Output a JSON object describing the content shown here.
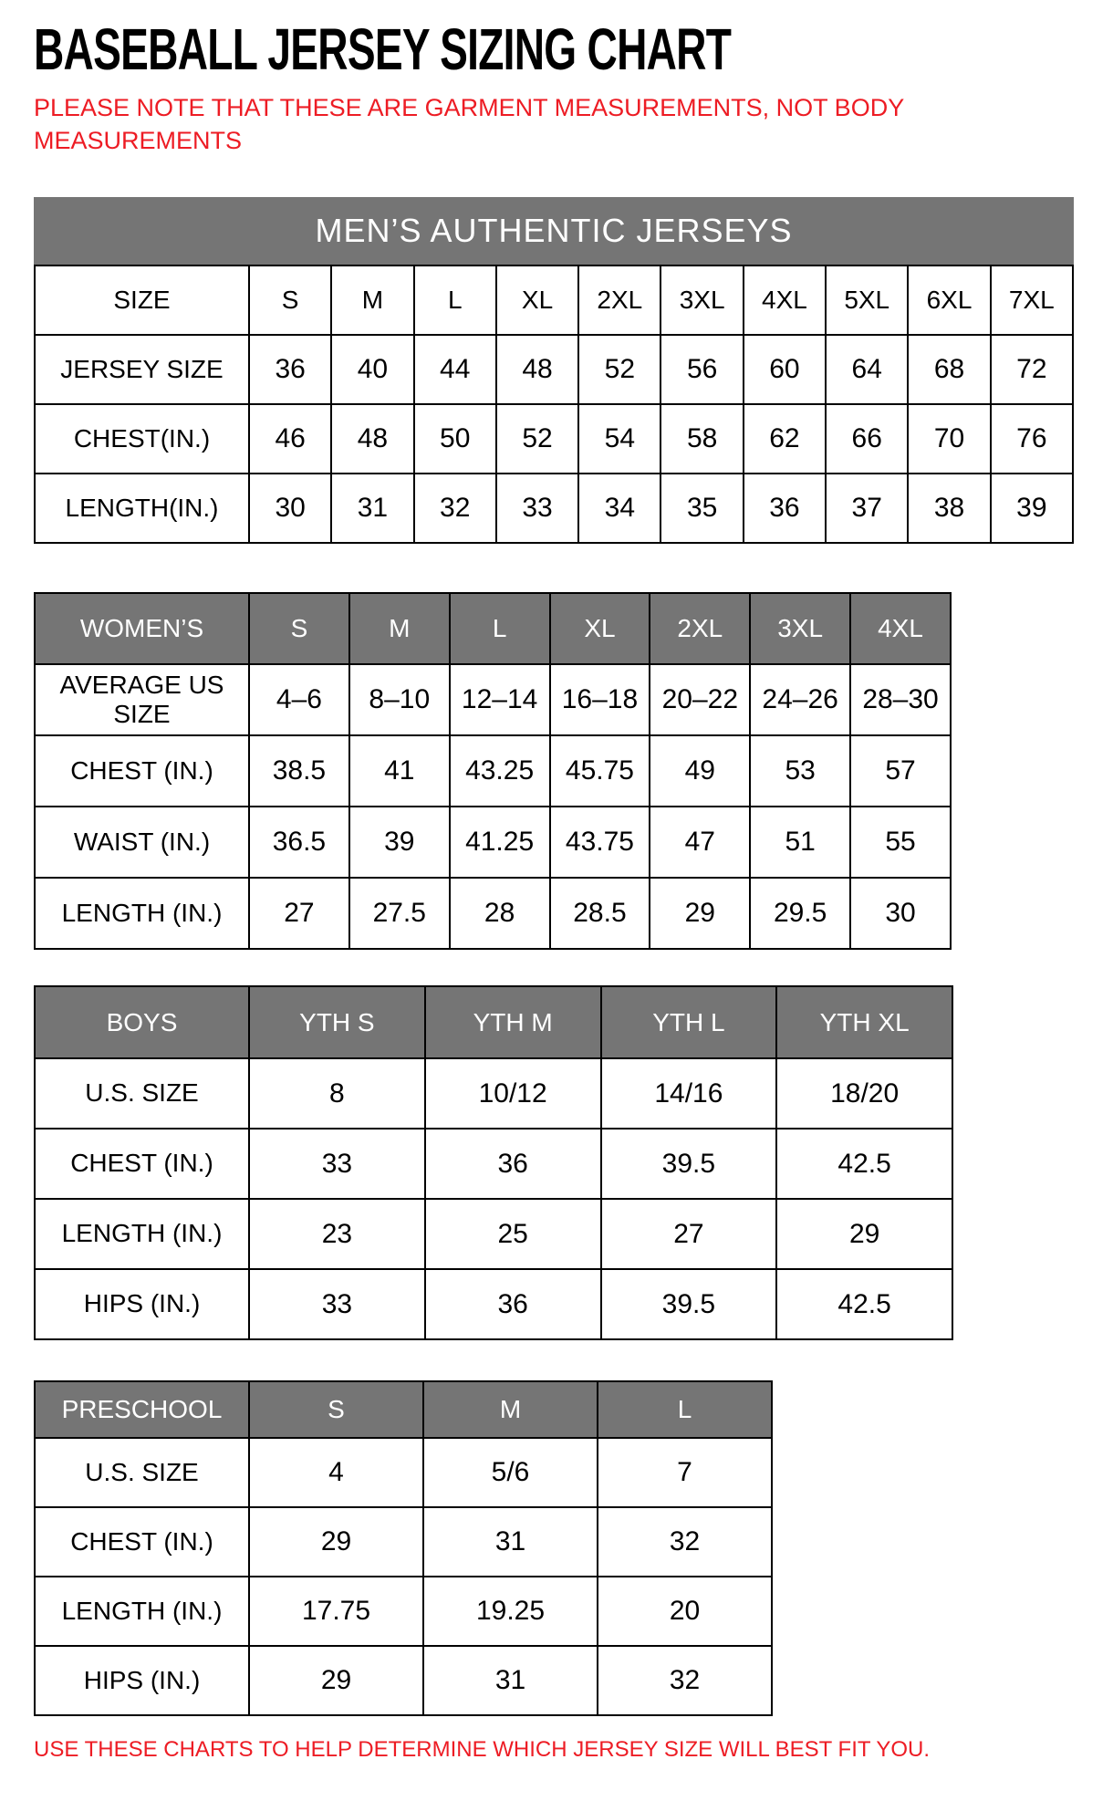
{
  "page": {
    "title": "BASEBALL JERSEY SIZING CHART",
    "note": "PLEASE NOTE THAT THESE ARE GARMENT MEASUREMENTS, NOT BODY MEASUREMENTS",
    "footer": "USE THESE CHARTS TO HELP DETERMINE WHICH JERSEY SIZE WILL BEST FIT YOU.",
    "colors": {
      "accent_red": "#ed1c24",
      "header_gray": "#757575",
      "text_black": "#000000"
    }
  },
  "tables": [
    {
      "name": "mens",
      "banner": "MEN’S AUTHENTIC JERSEYS",
      "gray_header": false,
      "header": [
        "SIZE",
        "S",
        "M",
        "L",
        "XL",
        "2XL",
        "3XL",
        "4XL",
        "5XL",
        "6XL",
        "7XL"
      ],
      "rows": [
        {
          "label": "JERSEY SIZE",
          "values": [
            "36",
            "40",
            "44",
            "48",
            "52",
            "56",
            "60",
            "64",
            "68",
            "72"
          ]
        },
        {
          "label": "CHEST(IN.)",
          "values": [
            "46",
            "48",
            "50",
            "52",
            "54",
            "58",
            "62",
            "66",
            "70",
            "76"
          ]
        },
        {
          "label": "LENGTH(IN.)",
          "values": [
            "30",
            "31",
            "32",
            "33",
            "34",
            "35",
            "36",
            "37",
            "38",
            "39"
          ]
        }
      ]
    },
    {
      "name": "womens",
      "banner": null,
      "gray_header": true,
      "header": [
        "WOMEN’S",
        "S",
        "M",
        "L",
        "XL",
        "2XL",
        "3XL",
        "4XL"
      ],
      "rows": [
        {
          "label": "AVERAGE US SIZE",
          "values": [
            "4–6",
            "8–10",
            "12–14",
            "16–18",
            "20–22",
            "24–26",
            "28–30"
          ]
        },
        {
          "label": "CHEST (IN.)",
          "values": [
            "38.5",
            "41",
            "43.25",
            "45.75",
            "49",
            "53",
            "57"
          ]
        },
        {
          "label": "WAIST (IN.)",
          "values": [
            "36.5",
            "39",
            "41.25",
            "43.75",
            "47",
            "51",
            "55"
          ]
        },
        {
          "label": "LENGTH (IN.)",
          "values": [
            "27",
            "27.5",
            "28",
            "28.5",
            "29",
            "29.5",
            "30"
          ]
        }
      ]
    },
    {
      "name": "boys",
      "banner": null,
      "gray_header": true,
      "header": [
        "BOYS",
        "YTH S",
        "YTH M",
        "YTH L",
        "YTH XL"
      ],
      "rows": [
        {
          "label": "U.S. SIZE",
          "values": [
            "8",
            "10/12",
            "14/16",
            "18/20"
          ]
        },
        {
          "label": "CHEST (IN.)",
          "values": [
            "33",
            "36",
            "39.5",
            "42.5"
          ]
        },
        {
          "label": "LENGTH (IN.)",
          "values": [
            "23",
            "25",
            "27",
            "29"
          ]
        },
        {
          "label": "HIPS (IN.)",
          "values": [
            "33",
            "36",
            "39.5",
            "42.5"
          ]
        }
      ]
    },
    {
      "name": "preschool",
      "banner": null,
      "gray_header": true,
      "header": [
        "PRESCHOOL",
        "S",
        "M",
        "L"
      ],
      "rows": [
        {
          "label": "U.S. SIZE",
          "values": [
            "4",
            "5/6",
            "7"
          ]
        },
        {
          "label": "CHEST (IN.)",
          "values": [
            "29",
            "31",
            "32"
          ]
        },
        {
          "label": "LENGTH (IN.)",
          "values": [
            "17.75",
            "19.25",
            "20"
          ]
        },
        {
          "label": "HIPS (IN.)",
          "values": [
            "29",
            "31",
            "32"
          ]
        }
      ]
    }
  ]
}
